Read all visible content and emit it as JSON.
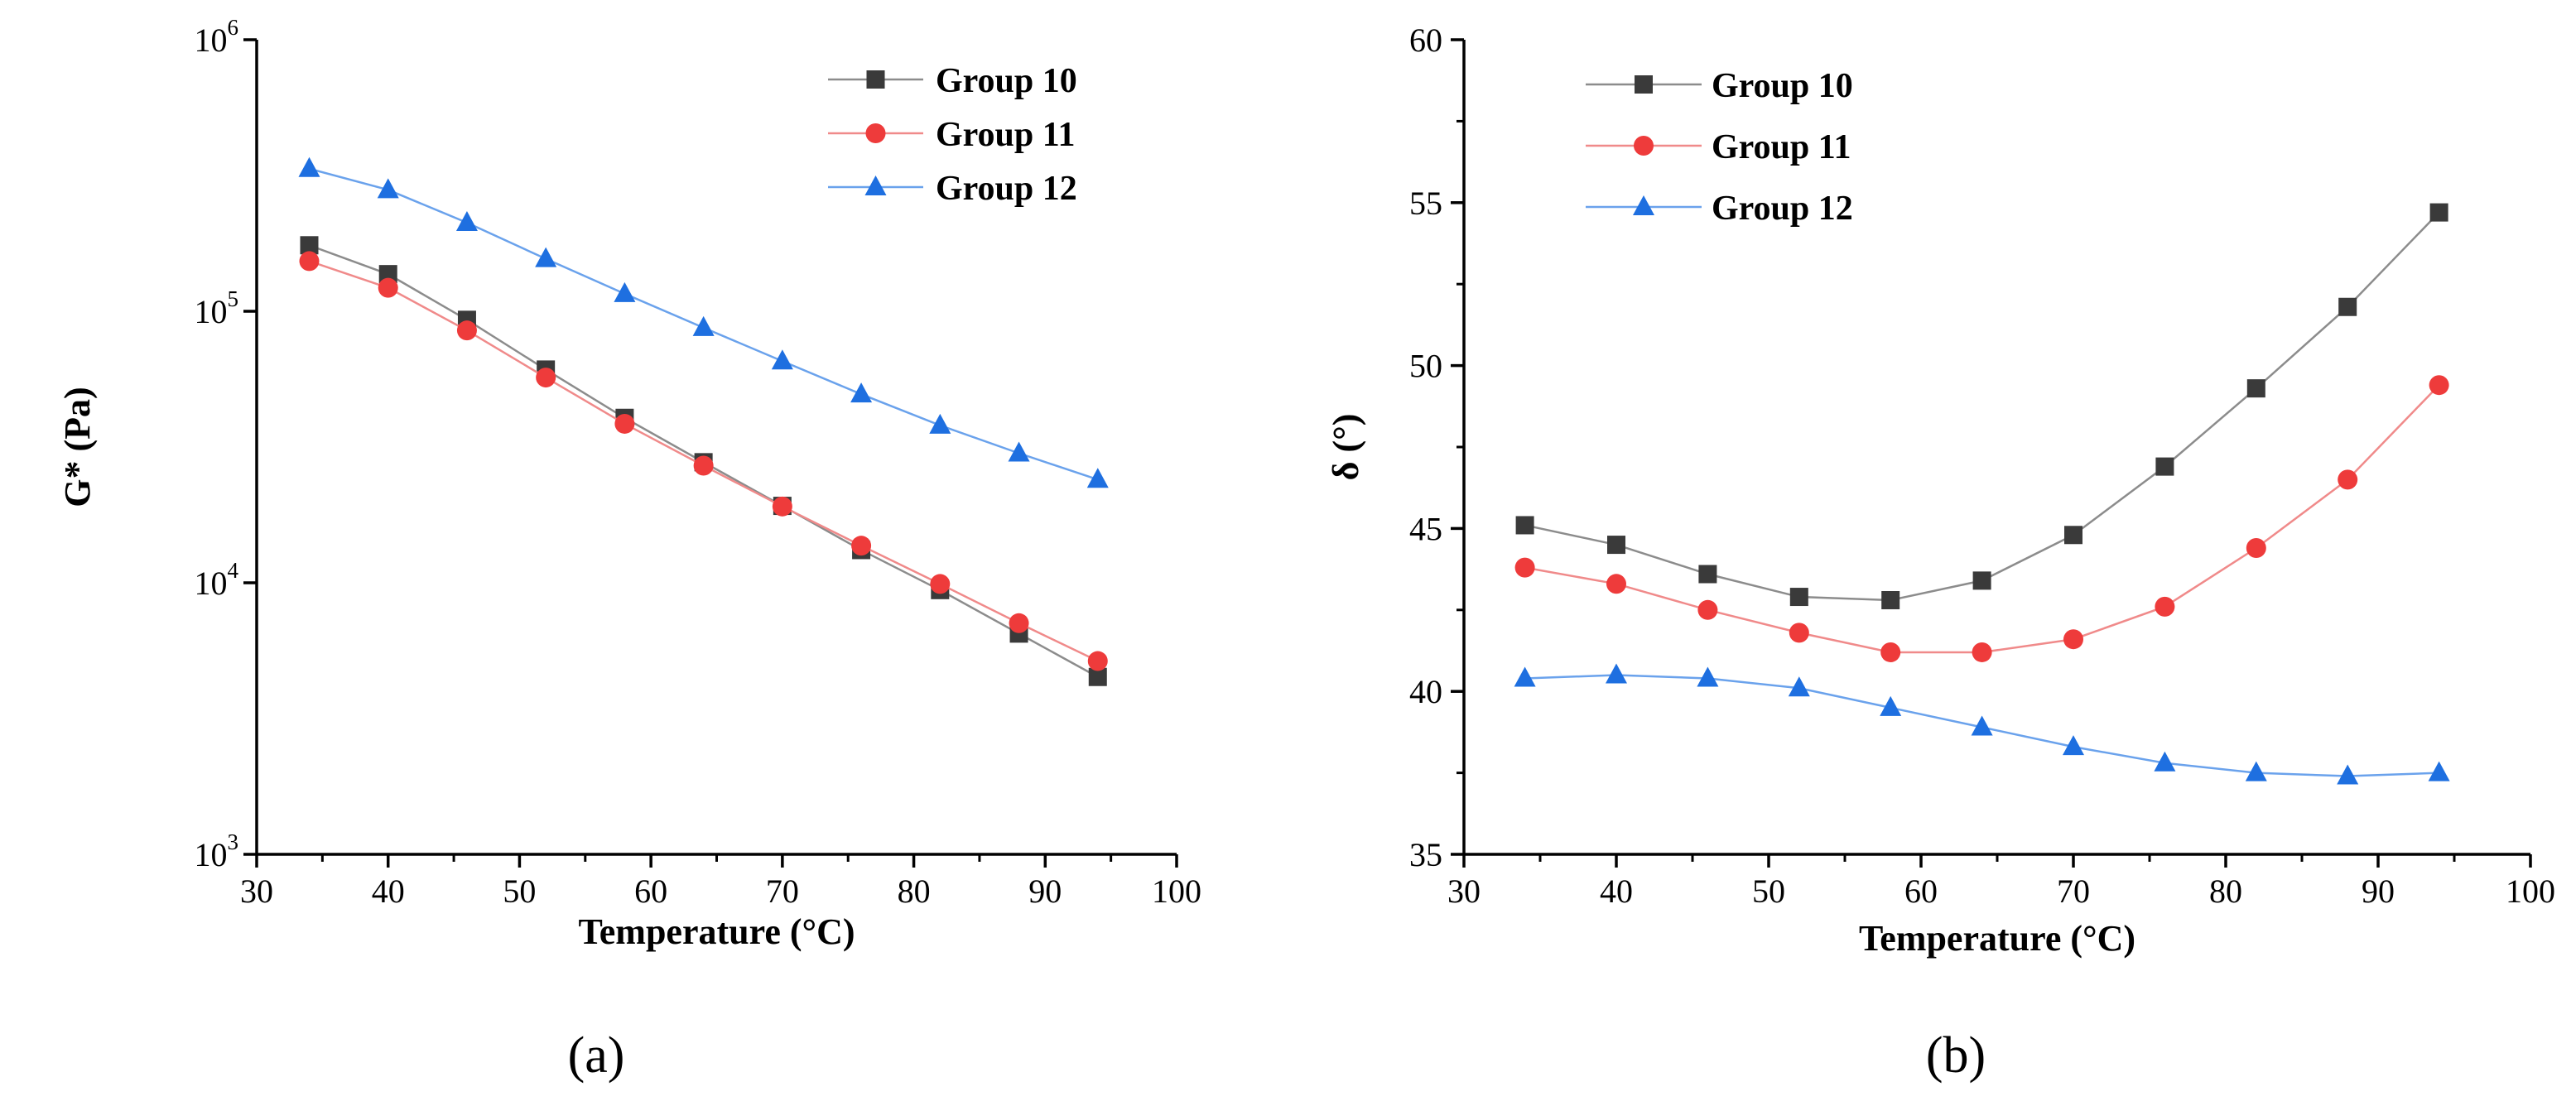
{
  "chart_data": [
    {
      "type": "line",
      "panel_label": "(a)",
      "title": "",
      "xlabel": "Temperature (°C)",
      "ylabel": "G* (Pa)",
      "yscale": "log",
      "xlim": [
        30,
        100
      ],
      "ylim": [
        1000,
        1000000
      ],
      "x_ticks": [
        30,
        40,
        50,
        60,
        70,
        80,
        90,
        100
      ],
      "y_ticks": [
        {
          "value": 1000,
          "base": "10",
          "exp": "3"
        },
        {
          "value": 10000,
          "base": "10",
          "exp": "4"
        },
        {
          "value": 100000,
          "base": "10",
          "exp": "5"
        },
        {
          "value": 1000000,
          "base": "10",
          "exp": "6"
        }
      ],
      "legend_position": "top-right",
      "x": [
        34,
        40,
        46,
        52,
        58,
        64,
        70,
        76,
        82,
        88,
        94
      ],
      "series": [
        {
          "name": "Group 10",
          "color": "#3a3a3a",
          "line_color": "#8c8c8c",
          "marker": "square",
          "values": [
            175000,
            137000,
            93000,
            61000,
            40500,
            27800,
            19200,
            13200,
            9400,
            6500,
            4500
          ]
        },
        {
          "name": "Group 11",
          "color": "#ee3b3b",
          "line_color": "#f08a8a",
          "marker": "circle",
          "values": [
            153000,
            122000,
            85000,
            57000,
            38500,
            27000,
            19100,
            13700,
            9900,
            7100,
            5150
          ]
        },
        {
          "name": "Group 12",
          "color": "#1e6fe0",
          "line_color": "#6aa2ec",
          "marker": "triangle",
          "values": [
            335000,
            280000,
            212000,
            156000,
            116000,
            87000,
            65500,
            49500,
            38000,
            30000,
            24000
          ]
        }
      ]
    },
    {
      "type": "line",
      "panel_label": "(b)",
      "title": "",
      "xlabel": "Temperature (°C)",
      "ylabel": "δ (°)",
      "yscale": "linear",
      "xlim": [
        30,
        100
      ],
      "ylim": [
        35,
        60
      ],
      "x_ticks": [
        30,
        40,
        50,
        60,
        70,
        80,
        90,
        100
      ],
      "y_ticks": [
        35,
        40,
        45,
        50,
        55,
        60
      ],
      "legend_position": "top-left",
      "x": [
        34,
        40,
        46,
        52,
        58,
        64,
        70,
        76,
        82,
        88,
        94
      ],
      "series": [
        {
          "name": "Group 10",
          "color": "#3a3a3a",
          "line_color": "#8c8c8c",
          "marker": "square",
          "values": [
            45.1,
            44.5,
            43.6,
            42.9,
            42.8,
            43.4,
            44.8,
            46.9,
            49.3,
            51.8,
            54.7
          ]
        },
        {
          "name": "Group 11",
          "color": "#ee3b3b",
          "line_color": "#f08a8a",
          "marker": "circle",
          "values": [
            43.8,
            43.3,
            42.5,
            41.8,
            41.2,
            41.2,
            41.6,
            42.6,
            44.4,
            46.5,
            49.4
          ]
        },
        {
          "name": "Group 12",
          "color": "#1e6fe0",
          "line_color": "#6aa2ec",
          "marker": "triangle",
          "values": [
            40.4,
            40.5,
            40.4,
            40.1,
            39.5,
            38.9,
            38.3,
            37.8,
            37.5,
            37.4,
            37.5
          ]
        }
      ]
    }
  ]
}
